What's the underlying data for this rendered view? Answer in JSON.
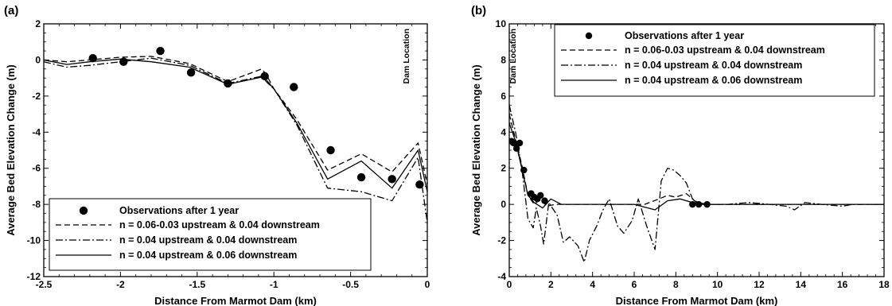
{
  "chart_data": [
    {
      "panel_label": "(a)",
      "type": "line",
      "xlabel": "Distance From Marmot Dam (km)",
      "ylabel": "Average Bed Elevation Change (m)",
      "xlim": [
        -2.5,
        0
      ],
      "ylim": [
        -12,
        2
      ],
      "xticks": [
        -2.5,
        -2,
        -1.5,
        -1,
        -0.5,
        0
      ],
      "xtick_labels": [
        "-2.5",
        "-2",
        "-1.5",
        "-1",
        "-0.5",
        "0"
      ],
      "yticks": [
        -12,
        -10,
        -8,
        -6,
        -4,
        -2,
        0,
        2
      ],
      "ytick_labels": [
        "-12",
        "-10",
        "-8",
        "-6",
        "-4",
        "-2",
        "0",
        "2"
      ],
      "annotation": "Dam Location",
      "legend_position": "bottom-right",
      "series": [
        {
          "name": "Observations after 1 year",
          "style": "points",
          "x": [
            -2.18,
            -1.98,
            -1.74,
            -1.54,
            -1.3,
            -1.06,
            -0.87,
            -0.63,
            -0.43,
            -0.23,
            -0.05
          ],
          "y": [
            0.1,
            -0.1,
            0.5,
            -0.7,
            -1.3,
            -0.9,
            -1.5,
            -5.0,
            -6.5,
            -6.6,
            -6.9
          ]
        },
        {
          "name": "n = 0.06-0.03 upstream & 0.04 downstream",
          "style": "dashed",
          "x": [
            -2.5,
            -2.35,
            -2.2,
            -2.0,
            -1.8,
            -1.55,
            -1.3,
            -1.08,
            -1.05,
            -1.0,
            -0.85,
            -0.65,
            -0.43,
            -0.23,
            -0.06,
            0.0
          ],
          "y": [
            0.0,
            -0.1,
            0.0,
            0.15,
            0.2,
            -0.2,
            -1.2,
            -0.5,
            -0.8,
            -1.6,
            -3.3,
            -6.1,
            -5.2,
            -6.2,
            -4.6,
            -6.9
          ]
        },
        {
          "name": "n = 0.04 upstream & 0.04 downstream",
          "style": "dashdot",
          "x": [
            -2.5,
            -2.35,
            -2.2,
            -2.0,
            -1.8,
            -1.55,
            -1.3,
            -1.08,
            -1.05,
            -1.0,
            -0.85,
            -0.65,
            -0.43,
            -0.23,
            -0.06,
            0.0
          ],
          "y": [
            -0.1,
            -0.4,
            -0.3,
            -0.1,
            0.1,
            -0.3,
            -1.3,
            -0.9,
            -1.2,
            -1.6,
            -3.6,
            -7.1,
            -7.3,
            -7.8,
            -5.4,
            -9.0
          ]
        },
        {
          "name": "n = 0.04 upstream & 0.06 downstream",
          "style": "solid",
          "x": [
            -2.5,
            -2.35,
            -2.2,
            -2.0,
            -1.8,
            -1.55,
            -1.3,
            -1.08,
            -1.05,
            -1.0,
            -0.85,
            -0.65,
            -0.43,
            -0.23,
            -0.06,
            0.0
          ],
          "y": [
            0.0,
            -0.25,
            -0.1,
            0.05,
            -0.1,
            -0.4,
            -1.35,
            -0.95,
            -1.1,
            -1.6,
            -3.5,
            -6.6,
            -5.6,
            -7.1,
            -5.0,
            -7.3
          ]
        }
      ]
    },
    {
      "panel_label": "(b)",
      "type": "line",
      "xlabel": "Distance From Marmot Dam (km)",
      "ylabel": "Average Bed Elevation Change (m)",
      "xlim": [
        0,
        18
      ],
      "ylim": [
        -4,
        10
      ],
      "xticks": [
        0,
        2,
        4,
        6,
        8,
        10,
        12,
        14,
        16,
        18
      ],
      "xtick_labels": [
        "0",
        "2",
        "4",
        "6",
        "8",
        "10",
        "12",
        "14",
        "16",
        "18"
      ],
      "yticks": [
        -4,
        -2,
        0,
        2,
        4,
        6,
        8,
        10
      ],
      "ytick_labels": [
        "-4",
        "-2",
        "0",
        "2",
        "4",
        "6",
        "8",
        "10"
      ],
      "annotation": "Dam Location",
      "legend_position": "top-right",
      "series": [
        {
          "name": "Observations after 1 year",
          "style": "points",
          "x": [
            0.1,
            0.2,
            0.35,
            0.5,
            0.7,
            1.05,
            1.2,
            1.35,
            1.5,
            1.7,
            8.8,
            9.1,
            9.5
          ],
          "y": [
            3.5,
            3.4,
            3.1,
            3.4,
            1.9,
            0.6,
            0.4,
            0.3,
            0.5,
            0.2,
            0.0,
            0.0,
            0.0
          ]
        },
        {
          "name": "n = 0.06-0.03 upstream & 0.04 downstream",
          "style": "dashed",
          "x": [
            0,
            0.3,
            0.6,
            0.9,
            1.2,
            1.5,
            1.8,
            2.2,
            2.8,
            3.5,
            4.5,
            5.5,
            6.5,
            7.2,
            7.6,
            8.0,
            8.5,
            9.0,
            9.6,
            11,
            12,
            13,
            14,
            15,
            16,
            17,
            18
          ],
          "y": [
            5.0,
            3.6,
            2.2,
            0.5,
            0.0,
            0.3,
            -0.1,
            0.0,
            0.0,
            0.0,
            0.0,
            0.0,
            0.0,
            0.3,
            0.5,
            0.4,
            0.6,
            0.1,
            0.0,
            0.0,
            0.0,
            0.0,
            0.0,
            0.0,
            0.0,
            0.0,
            0.0
          ]
        },
        {
          "name": "n = 0.04 upstream & 0.04 downstream",
          "style": "dashdot",
          "x": [
            0,
            0.3,
            0.6,
            0.9,
            1.15,
            1.3,
            1.5,
            1.65,
            1.9,
            2.3,
            2.6,
            2.9,
            3.3,
            3.6,
            3.85,
            4.2,
            4.5,
            4.8,
            5.2,
            5.5,
            5.9,
            6.2,
            6.6,
            7.0,
            7.3,
            7.6,
            7.9,
            8.2,
            8.5,
            8.8,
            9.2,
            9.6,
            10.5,
            11.5,
            12.5,
            13.3,
            13.7,
            14.2,
            15,
            16,
            16.5,
            17,
            18
          ],
          "y": [
            5.5,
            4.0,
            2.0,
            -0.8,
            -1.3,
            -0.2,
            -1.2,
            -2.2,
            0.1,
            -0.6,
            -2.1,
            -1.8,
            -2.3,
            -3.2,
            -2.0,
            -1.2,
            -0.3,
            0.3,
            -1.2,
            -1.6,
            -0.9,
            0.3,
            -1.2,
            -2.5,
            1.3,
            2.0,
            1.9,
            1.6,
            1.2,
            0.3,
            0.0,
            0.0,
            0.0,
            0.1,
            0.0,
            -0.1,
            -0.3,
            0.1,
            0.0,
            -0.1,
            0.0,
            0.0,
            0.0
          ]
        },
        {
          "name": "n = 0.04 upstream & 0.06 downstream",
          "style": "solid",
          "x": [
            0,
            0.3,
            0.6,
            0.9,
            1.2,
            1.6,
            2.0,
            2.5,
            3.0,
            3.6,
            4.2,
            5.0,
            6.0,
            7.0,
            7.6,
            8.2,
            8.8,
            9.6,
            11,
            12,
            13,
            14,
            15,
            16,
            17,
            18
          ],
          "y": [
            4.5,
            3.5,
            2.0,
            0.5,
            0.1,
            -0.2,
            0.3,
            0.0,
            0.0,
            0.0,
            0.0,
            0.0,
            0.0,
            -0.3,
            0.2,
            0.3,
            0.1,
            0.0,
            0.0,
            0.0,
            0.0,
            0.0,
            0.0,
            0.0,
            0.0,
            0.0
          ]
        }
      ]
    }
  ]
}
